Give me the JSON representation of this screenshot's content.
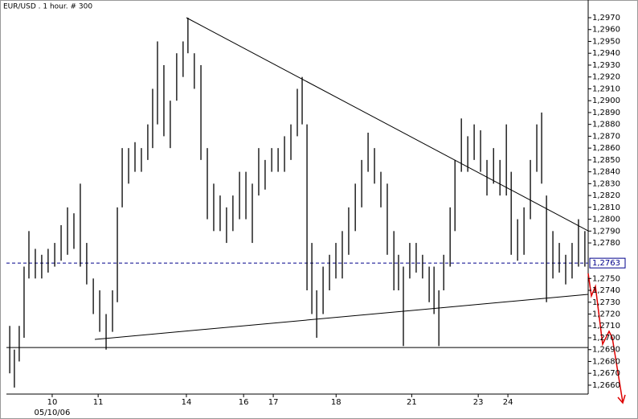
{
  "chart_data": {
    "type": "ohlc",
    "title": "EUR/USD . 1 hour. # 300",
    "xlim": [
      0,
      300
    ],
    "ylim": [
      1.26525,
      1.29795
    ],
    "xticks": [
      {
        "value": 23.6,
        "label": "10"
      },
      {
        "value": 47.3,
        "label": "11"
      },
      {
        "value": 92.8,
        "label": "14"
      },
      {
        "value": 122.3,
        "label": "16"
      },
      {
        "value": 137.6,
        "label": "17"
      },
      {
        "value": 170,
        "label": "18"
      },
      {
        "value": 209,
        "label": "21"
      },
      {
        "value": 243.3,
        "label": "23"
      },
      {
        "value": 258.6,
        "label": "24"
      }
    ],
    "date_label": "05/10/06",
    "yticks": [
      {
        "value": 1.266,
        "label": "1,2660"
      },
      {
        "value": 1.267,
        "label": "1,2670"
      },
      {
        "value": 1.268,
        "label": "1,2680"
      },
      {
        "value": 1.269,
        "label": "1,2690"
      },
      {
        "value": 1.27,
        "label": "1,2700"
      },
      {
        "value": 1.271,
        "label": "1,2710"
      },
      {
        "value": 1.272,
        "label": "1,2720"
      },
      {
        "value": 1.273,
        "label": "1,2730"
      },
      {
        "value": 1.274,
        "label": "1,2740"
      },
      {
        "value": 1.275,
        "label": "1,2750"
      },
      {
        "value": 1.278,
        "label": "1,2780"
      },
      {
        "value": 1.279,
        "label": "1,2790"
      },
      {
        "value": 1.28,
        "label": "1,2800"
      },
      {
        "value": 1.281,
        "label": "1,2810"
      },
      {
        "value": 1.282,
        "label": "1,2820"
      },
      {
        "value": 1.283,
        "label": "1,2830"
      },
      {
        "value": 1.284,
        "label": "1,2840"
      },
      {
        "value": 1.285,
        "label": "1,2850"
      },
      {
        "value": 1.286,
        "label": "1,2860"
      },
      {
        "value": 1.287,
        "label": "1,2870"
      },
      {
        "value": 1.288,
        "label": "1,2880"
      },
      {
        "value": 1.289,
        "label": "1,2890"
      },
      {
        "value": 1.29,
        "label": "1,2900"
      },
      {
        "value": 1.291,
        "label": "1,2910"
      },
      {
        "value": 1.292,
        "label": "1,2920"
      },
      {
        "value": 1.293,
        "label": "1,2930"
      },
      {
        "value": 1.294,
        "label": "1,2940"
      },
      {
        "value": 1.295,
        "label": "1,2950"
      },
      {
        "value": 1.296,
        "label": "1,2960"
      },
      {
        "value": 1.297,
        "label": "1,2970"
      }
    ],
    "color": "#000000",
    "x": [
      1.7,
      4.1,
      6.6,
      9.1,
      11.6,
      14.9,
      18.2,
      21.5,
      24.9,
      28.2,
      31.5,
      34.8,
      38.1,
      41.4,
      44.8,
      48.1,
      51.4,
      54.7,
      57.2,
      59.7,
      63,
      66.3,
      69.6,
      72.9,
      75.4,
      77.9,
      81.2,
      84.5,
      87.8,
      91.1,
      93.6,
      96.9,
      100.3,
      103.6,
      106.9,
      110.2,
      113.5,
      116.8,
      120.2,
      123.5,
      126.8,
      130.1,
      133.4,
      136.8,
      140.1,
      143.4,
      146.7,
      150,
      152.5,
      155,
      157.5,
      160,
      163.3,
      166.6,
      169.9,
      173.2,
      176.5,
      179.9,
      183.2,
      186.5,
      189.8,
      193.1,
      196.4,
      199.8,
      202.2,
      204.7,
      208,
      211.3,
      214.6,
      218,
      220.5,
      223,
      225.5,
      228.8,
      231.3,
      234.6,
      237.9,
      241.2,
      244.5,
      247.8,
      251.2,
      254.5,
      257.8,
      260.3,
      263.6,
      266.9,
      270.2,
      273.5,
      276,
      278.5,
      281.8,
      285.1,
      288.4,
      291.7,
      295,
      298.3
    ],
    "high": [
      1.271,
      1.269,
      1.271,
      1.276,
      1.279,
      1.2775,
      1.277,
      1.2775,
      1.278,
      1.2795,
      1.281,
      1.2805,
      1.283,
      1.278,
      1.275,
      1.274,
      1.272,
      1.274,
      1.281,
      1.286,
      1.286,
      1.2865,
      1.286,
      1.288,
      1.291,
      1.295,
      1.293,
      1.29,
      1.294,
      1.295,
      1.297,
      1.294,
      1.293,
      1.286,
      1.283,
      1.282,
      1.281,
      1.282,
      1.284,
      1.284,
      1.283,
      1.286,
      1.285,
      1.286,
      1.286,
      1.287,
      1.288,
      1.291,
      1.292,
      1.288,
      1.278,
      1.274,
      1.276,
      1.277,
      1.278,
      1.279,
      1.281,
      1.283,
      1.285,
      1.2873,
      1.286,
      1.284,
      1.283,
      1.279,
      1.277,
      1.276,
      1.278,
      1.278,
      1.277,
      1.276,
      1.276,
      1.274,
      1.277,
      1.281,
      1.285,
      1.2885,
      1.287,
      1.288,
      1.2875,
      1.285,
      1.286,
      1.285,
      1.288,
      1.284,
      1.28,
      1.281,
      1.285,
      1.288,
      1.289,
      1.282,
      1.279,
      1.278,
      1.277,
      1.278,
      1.28,
      1.279
    ],
    "low": [
      1.267,
      1.2658,
      1.268,
      1.27,
      1.275,
      1.275,
      1.275,
      1.2755,
      1.276,
      1.2765,
      1.277,
      1.2775,
      1.276,
      1.2745,
      1.272,
      1.2705,
      1.269,
      1.2705,
      1.273,
      1.281,
      1.283,
      1.284,
      1.284,
      1.285,
      1.286,
      1.288,
      1.287,
      1.286,
      1.29,
      1.292,
      1.294,
      1.291,
      1.285,
      1.28,
      1.279,
      1.279,
      1.278,
      1.279,
      1.28,
      1.28,
      1.278,
      1.282,
      1.2825,
      1.284,
      1.284,
      1.284,
      1.285,
      1.287,
      1.288,
      1.274,
      1.272,
      1.27,
      1.272,
      1.274,
      1.275,
      1.275,
      1.277,
      1.279,
      1.281,
      1.284,
      1.283,
      1.281,
      1.277,
      1.274,
      1.274,
      1.2693,
      1.275,
      1.2755,
      1.275,
      1.273,
      1.272,
      1.2693,
      1.274,
      1.276,
      1.279,
      1.284,
      1.284,
      1.285,
      1.284,
      1.282,
      1.283,
      1.282,
      1.282,
      1.277,
      1.2765,
      1.277,
      1.28,
      1.284,
      1.283,
      1.273,
      1.275,
      1.2755,
      1.2745,
      1.275,
      1.276,
      1.276
    ],
    "price_line": {
      "value": 1.2763,
      "label": "1,2763",
      "color": "#00008b"
    },
    "trendlines": [
      {
        "x": [
          92.8,
          300
        ],
        "y": [
          1.297,
          1.27902
        ]
      },
      {
        "x": [
          45.6,
          300
        ],
        "y": [
          1.26986,
          1.27366
        ]
      },
      {
        "x": [
          0,
          300
        ],
        "y": [
          1.26918,
          1.26918
        ]
      }
    ]
  }
}
